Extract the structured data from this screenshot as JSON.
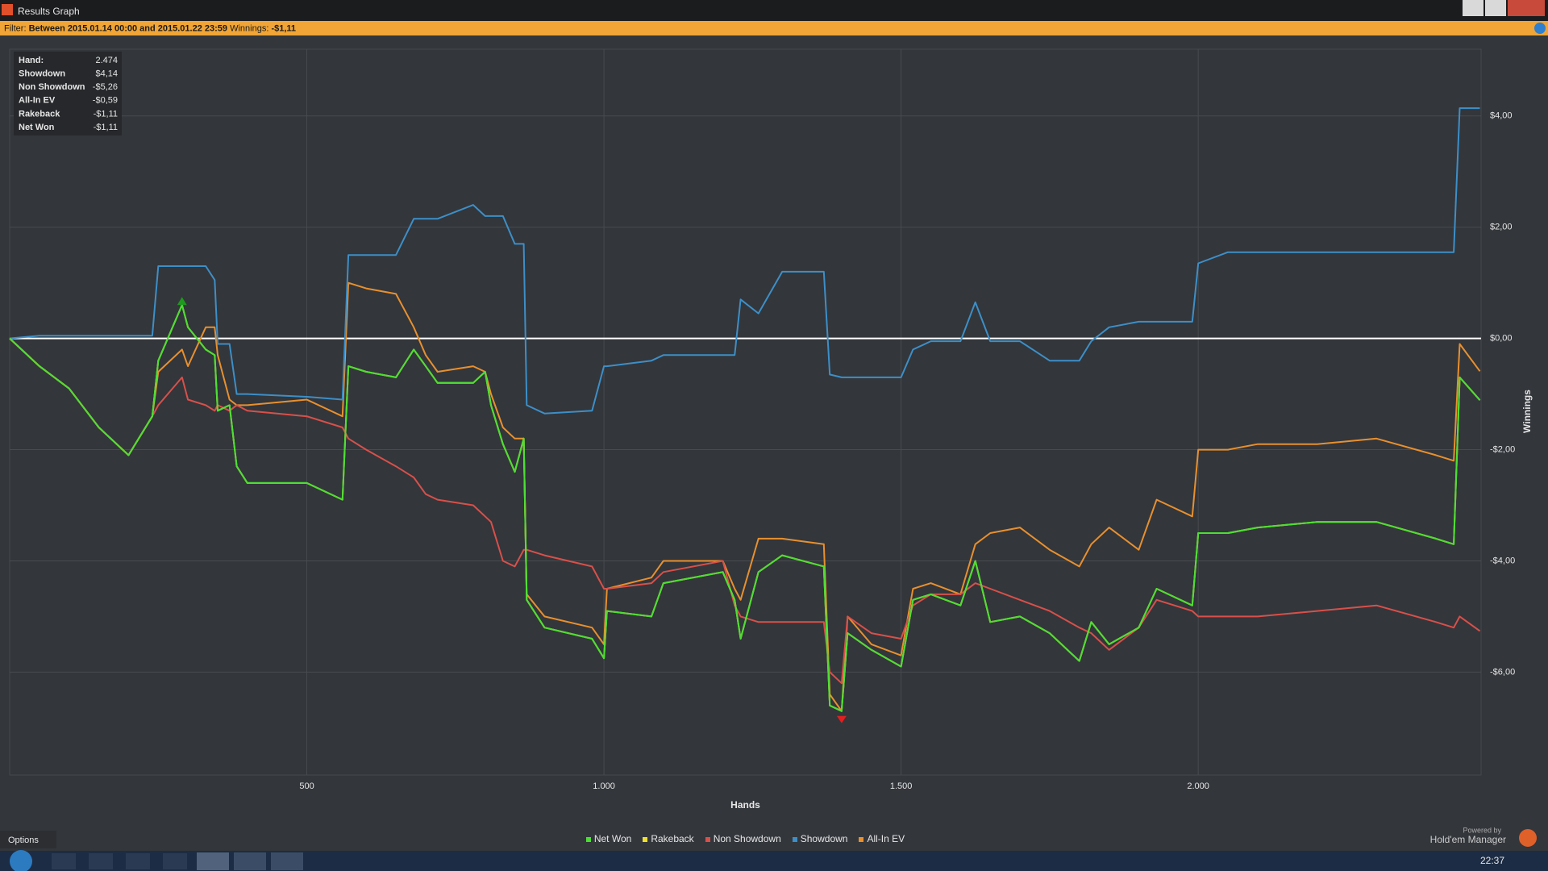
{
  "window": {
    "title": "Results Graph"
  },
  "filter_bar": {
    "label": "Filter:",
    "range": "Between 2015.01.14 00:00 and 2015.01.22 23:59",
    "winnings_label": "Winnings:",
    "winnings": "-$1,11"
  },
  "info_box": {
    "rows": [
      [
        "Hand:",
        "2.474"
      ],
      [
        "Showdown",
        "$4,14"
      ],
      [
        "Non Showdown",
        "-$5,26"
      ],
      [
        "All-In EV",
        "-$0,59"
      ],
      [
        "Rakeback",
        "-$1,11"
      ],
      [
        "Net Won",
        "-$1,11"
      ]
    ]
  },
  "chart_data": {
    "type": "line",
    "xlabel": "Hands",
    "ylabel": "Winnings",
    "grid": true,
    "legend": "bottom",
    "xlim": [
      0,
      2476
    ],
    "ylim": [
      -7.85,
      5.2
    ],
    "xticks": [
      500,
      {
        "value": 1000,
        "label": "1.000"
      },
      {
        "value": 1500,
        "label": "1.500"
      },
      {
        "value": 2000,
        "label": "2.000"
      }
    ],
    "yticks": [
      {
        "value": 4,
        "label": "$4,00"
      },
      {
        "value": 2,
        "label": "$2,00"
      },
      {
        "value": 0,
        "label": "$0,00"
      },
      {
        "value": -2,
        "label": "-$2,00"
      },
      {
        "value": -4,
        "label": "-$4,00"
      },
      {
        "value": -6,
        "label": "-$6,00"
      }
    ],
    "x": [
      0,
      50,
      100,
      150,
      200,
      240,
      250,
      290,
      300,
      330,
      345,
      350,
      370,
      382,
      400,
      500,
      560,
      570,
      600,
      650,
      680,
      700,
      720,
      780,
      800,
      810,
      830,
      850,
      865,
      870,
      900,
      980,
      1000,
      1005,
      1080,
      1100,
      1200,
      1220,
      1230,
      1260,
      1300,
      1370,
      1380,
      1400,
      1410,
      1450,
      1500,
      1520,
      1550,
      1600,
      1625,
      1650,
      1700,
      1750,
      1800,
      1820,
      1850,
      1900,
      1930,
      1990,
      2000,
      2050,
      2100,
      2200,
      2300,
      2400,
      2430,
      2440,
      2474
    ],
    "series": [
      {
        "name": "Net Won",
        "color": "#4cde34",
        "values": [
          0,
          -0.5,
          -0.9,
          -1.6,
          -2.1,
          -1.4,
          -0.4,
          0.6,
          0.2,
          -0.2,
          -0.3,
          -1.3,
          -1.2,
          -2.3,
          -2.6,
          -2.6,
          -2.9,
          -0.5,
          -0.6,
          -0.7,
          -0.2,
          -0.5,
          -0.8,
          -0.8,
          -0.6,
          -1.2,
          -1.9,
          -2.4,
          -1.8,
          -4.7,
          -5.2,
          -5.4,
          -5.75,
          -4.9,
          -5.0,
          -4.4,
          -4.2,
          -4.7,
          -5.4,
          -4.2,
          -3.9,
          -4.1,
          -6.6,
          -6.7,
          -5.3,
          -5.6,
          -5.9,
          -4.7,
          -4.6,
          -4.8,
          -4.0,
          -5.1,
          -5.0,
          -5.3,
          -5.8,
          -5.1,
          -5.5,
          -5.2,
          -4.5,
          -4.8,
          -3.5,
          -3.5,
          -3.4,
          -3.3,
          -3.3,
          -3.6,
          -3.7,
          -0.7,
          -1.11
        ]
      },
      {
        "name": "Rakeback",
        "color": "#f0e030",
        "values": [
          0,
          -0.5,
          -0.9,
          -1.6,
          -2.1,
          -1.4,
          -0.4,
          0.6,
          0.2,
          -0.2,
          -0.3,
          -1.3,
          -1.2,
          -2.3,
          -2.6,
          -2.6,
          -2.9,
          -0.5,
          -0.6,
          -0.7,
          -0.2,
          -0.5,
          -0.8,
          -0.8,
          -0.6,
          -1.2,
          -1.9,
          -2.4,
          -1.8,
          -4.7,
          -5.2,
          -5.4,
          -5.75,
          -4.9,
          -5.0,
          -4.4,
          -4.2,
          -4.7,
          -5.4,
          -4.2,
          -3.9,
          -4.1,
          -6.6,
          -6.7,
          -5.3,
          -5.6,
          -5.9,
          -4.7,
          -4.6,
          -4.8,
          -4.0,
          -5.1,
          -5.0,
          -5.3,
          -5.8,
          -5.1,
          -5.5,
          -5.2,
          -4.5,
          -4.8,
          -3.5,
          -3.5,
          -3.4,
          -3.3,
          -3.3,
          -3.6,
          -3.7,
          -0.7,
          -1.11
        ]
      },
      {
        "name": "Non Showdown",
        "color": "#d8504a",
        "values": [
          0,
          -0.5,
          -0.9,
          -1.6,
          -2.1,
          -1.4,
          -1.2,
          -0.7,
          -1.1,
          -1.2,
          -1.3,
          -1.2,
          -1.3,
          -1.2,
          -1.3,
          -1.4,
          -1.6,
          -1.8,
          -2.0,
          -2.3,
          -2.5,
          -2.8,
          -2.9,
          -3.0,
          -3.2,
          -3.3,
          -4.0,
          -4.1,
          -3.8,
          -3.8,
          -3.9,
          -4.1,
          -4.5,
          -4.5,
          -4.4,
          -4.2,
          -4.0,
          -4.8,
          -5.0,
          -5.1,
          -5.1,
          -5.1,
          -6.0,
          -6.2,
          -5.0,
          -5.3,
          -5.4,
          -4.8,
          -4.6,
          -4.6,
          -4.4,
          -4.5,
          -4.7,
          -4.9,
          -5.2,
          -5.3,
          -5.6,
          -5.2,
          -4.7,
          -4.9,
          -5.0,
          -5.0,
          -5.0,
          -4.9,
          -4.8,
          -5.1,
          -5.2,
          -5.0,
          -5.26
        ]
      },
      {
        "name": "Showdown",
        "color": "#3d8fc7",
        "values": [
          0,
          0.05,
          0.05,
          0.05,
          0.05,
          0.05,
          1.3,
          1.3,
          1.3,
          1.3,
          1.05,
          -0.1,
          -0.1,
          -1.0,
          -1.0,
          -1.05,
          -1.1,
          1.5,
          1.5,
          1.5,
          2.15,
          2.15,
          2.15,
          2.4,
          2.2,
          2.2,
          2.2,
          1.7,
          1.7,
          -1.2,
          -1.35,
          -1.3,
          -0.5,
          -0.5,
          -0.4,
          -0.3,
          -0.3,
          -0.3,
          0.7,
          0.45,
          1.2,
          1.2,
          -0.65,
          -0.7,
          -0.7,
          -0.7,
          -0.7,
          -0.2,
          -0.05,
          -0.05,
          0.65,
          -0.05,
          -0.05,
          -0.4,
          -0.4,
          -0.05,
          0.2,
          0.3,
          0.3,
          0.3,
          1.35,
          1.55,
          1.55,
          1.55,
          1.55,
          1.55,
          1.55,
          4.14,
          4.14
        ]
      },
      {
        "name": "All-In EV",
        "color": "#e8902e",
        "values": [
          0,
          -0.5,
          -0.9,
          -1.6,
          -2.1,
          -1.4,
          -0.6,
          -0.2,
          -0.5,
          0.2,
          0.2,
          -0.3,
          -1.1,
          -1.2,
          -1.2,
          -1.1,
          -1.4,
          1.0,
          0.9,
          0.8,
          0.2,
          -0.3,
          -0.6,
          -0.5,
          -0.6,
          -1.0,
          -1.6,
          -1.8,
          -1.8,
          -4.6,
          -5.0,
          -5.2,
          -5.5,
          -4.5,
          -4.3,
          -4.0,
          -4.0,
          -4.5,
          -4.7,
          -3.6,
          -3.6,
          -3.7,
          -6.4,
          -6.7,
          -5.0,
          -5.5,
          -5.7,
          -4.5,
          -4.4,
          -4.6,
          -3.7,
          -3.5,
          -3.4,
          -3.8,
          -4.1,
          -3.7,
          -3.4,
          -3.8,
          -2.9,
          -3.2,
          -2.0,
          -2.0,
          -1.9,
          -1.9,
          -1.8,
          -2.1,
          -2.2,
          -0.1,
          -0.59
        ]
      }
    ]
  },
  "footer": {
    "options": "Options",
    "powered_by": "Powered by",
    "brand": "Hold'em Manager",
    "clock": "22:37"
  }
}
